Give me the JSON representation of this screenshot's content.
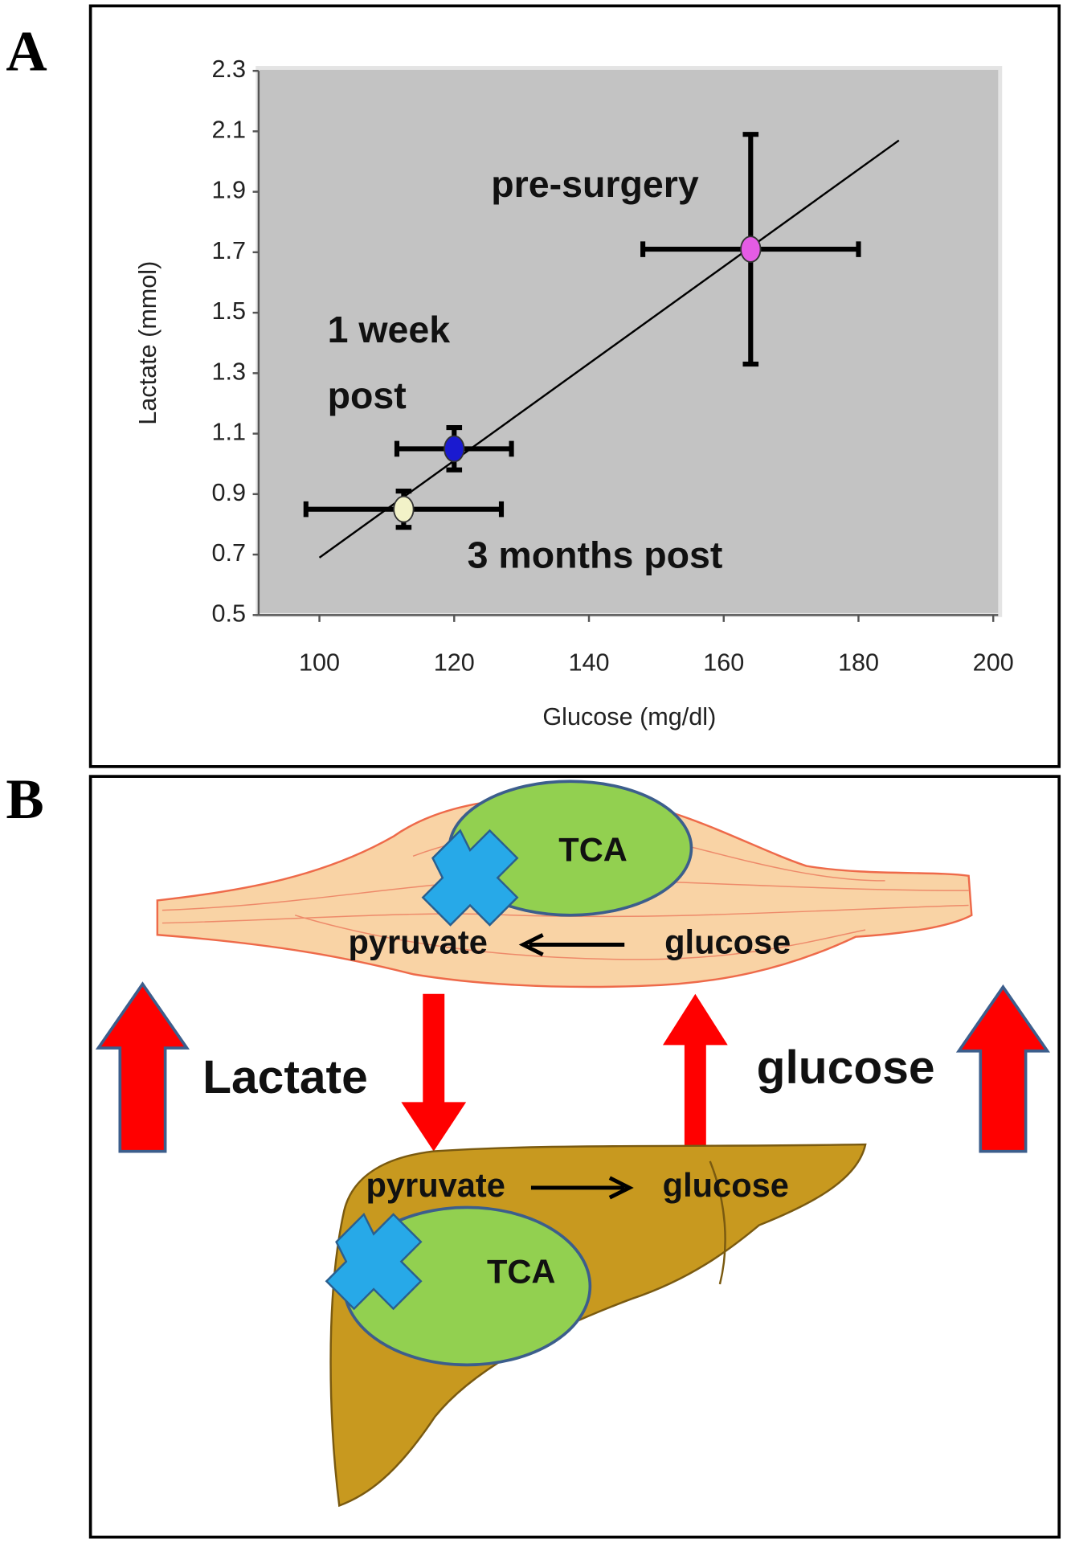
{
  "panel_labels": [
    "A",
    "B"
  ],
  "chart_data": {
    "type": "scatter",
    "x_label": "Glucose (mg/dl)",
    "y_label": "Lactate (mmol)",
    "x": [
      112.5,
      120,
      164
    ],
    "y": [
      0.85,
      1.05,
      1.71
    ],
    "xerr": [
      14.5,
      8.5,
      16
    ],
    "yerr": [
      0.06,
      0.07,
      0.38
    ],
    "point_colors": [
      "#f2f2c8",
      "#1a1ad0",
      "#e45ce4"
    ],
    "errorbar_color": "#000000",
    "fit_line": {
      "x": [
        100,
        186
      ],
      "y": [
        0.69,
        2.07
      ],
      "color": "#000000"
    },
    "annotations": [
      "pre-surgery",
      "1 week",
      "post",
      "3 months post"
    ],
    "xlim": [
      92,
      200
    ],
    "xticks": [
      100,
      120,
      140,
      160,
      180,
      200
    ],
    "ylim": [
      0.5,
      2.3
    ],
    "yticks": [
      0.5,
      0.7,
      0.9,
      1.1,
      1.3,
      1.5,
      1.7,
      1.9,
      2.1,
      2.3
    ],
    "background": "#c3c3c3"
  },
  "diagram": {
    "muscle": {
      "tca": "TCA",
      "pyruvate": "pyruvate",
      "glucose": "glucose"
    },
    "liver": {
      "tca": "TCA",
      "pyruvate": "pyruvate",
      "glucose": "glucose"
    },
    "labels": {
      "lactate": "Lactate",
      "glucose": "glucose"
    }
  }
}
